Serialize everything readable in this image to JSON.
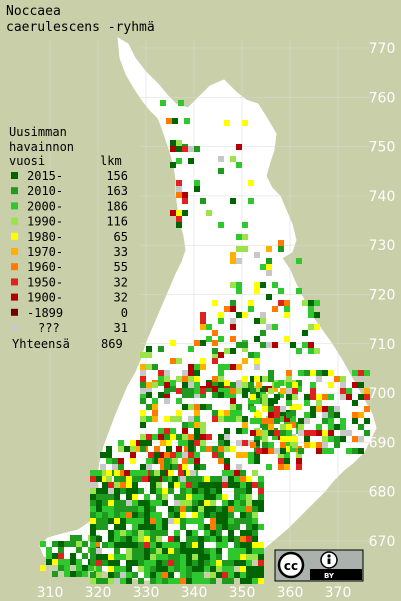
{
  "title": {
    "line1": "Noccaea",
    "line2": "caerulescens -ryhmä"
  },
  "legend": {
    "heading_line1": "Uusimman",
    "heading_line2": "havainnon",
    "col_year": "vuosi",
    "col_count": "lkm",
    "rows": [
      {
        "label": "2015-",
        "count": "156",
        "color": "#006400"
      },
      {
        "label": "2010-",
        "count": "163",
        "color": "#1e9b1e"
      },
      {
        "label": "2000-",
        "count": "186",
        "color": "#2ec82e"
      },
      {
        "label": "1990-",
        "count": "116",
        "color": "#9be24b"
      },
      {
        "label": "1980-",
        "count": "65",
        "color": "#ffff00"
      },
      {
        "label": "1970-",
        "count": "33",
        "color": "#ffb000"
      },
      {
        "label": "1960-",
        "count": "55",
        "color": "#ff7a00"
      },
      {
        "label": "1950-",
        "count": "32",
        "color": "#e0221e"
      },
      {
        "label": "1900-",
        "count": "32",
        "color": "#b00000"
      },
      {
        "label": "-1899",
        "count": "0",
        "color": "#700000"
      },
      {
        "label": "???",
        "count": "31",
        "color": "#c8c8c8"
      }
    ],
    "total_label": "Yhteensä",
    "total_count": "869"
  },
  "axes": {
    "x_labels": [
      "310",
      "320",
      "330",
      "340",
      "350",
      "360",
      "370"
    ],
    "y_labels": [
      "770",
      "760",
      "750",
      "740",
      "730",
      "720",
      "710",
      "700",
      "690",
      "680",
      "670"
    ]
  },
  "license": {
    "cc": "cc",
    "by": "BY",
    "icon": "creative-commons-by-icon"
  },
  "colors": {
    "background": "#c9cfa8",
    "land": "#ffffff"
  }
}
